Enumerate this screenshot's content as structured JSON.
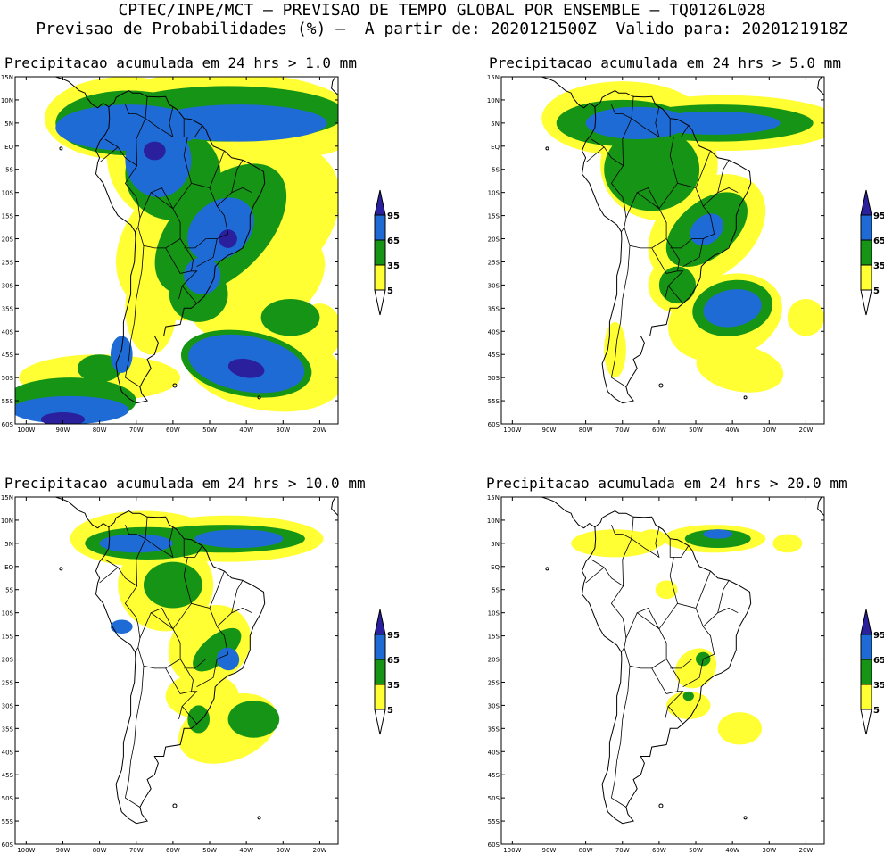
{
  "header": {
    "line1": "CPTEC/INPE/MCT – PREVISAO DE TEMPO GLOBAL POR ENSEMBLE – TQ0126L028",
    "line2": "Previsao de Probabilidades (%) –  A partir de: 2020121500Z  Valido para: 2020121918Z"
  },
  "axes": {
    "lat_labels": [
      "15N",
      "10N",
      "5N",
      "EQ",
      "5S",
      "10S",
      "15S",
      "20S",
      "25S",
      "30S",
      "35S",
      "40S",
      "45S",
      "50S",
      "55S",
      "60S"
    ],
    "lon_labels": [
      "100W",
      "90W",
      "80W",
      "70W",
      "60W",
      "50W",
      "40W",
      "30W",
      "20W"
    ]
  },
  "legend": {
    "levels": [
      "95",
      "65",
      "35",
      "5"
    ],
    "colors": {
      "p95": "#2a1f9c",
      "p65": "#1f6bd6",
      "p35": "#169416",
      "p5": "#ffff33"
    }
  },
  "panels": [
    {
      "id": "p1",
      "title": "Precipitacao acumulada em 24 hrs > 1.0 mm"
    },
    {
      "id": "p2",
      "title": "Precipitacao acumulada em 24 hrs > 5.0 mm"
    },
    {
      "id": "p3",
      "title": "Precipitacao acumulada em 24 hrs > 10.0 mm"
    },
    {
      "id": "p4",
      "title": "Precipitacao acumulada em 24 hrs > 20.0 mm"
    }
  ]
}
